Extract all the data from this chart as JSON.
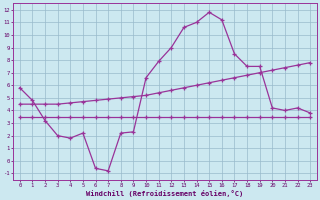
{
  "bg_color": "#cce8f0",
  "line_color": "#993399",
  "grid_color": "#99bbcc",
  "xlabel": "Windchill (Refroidissement éolien,°C)",
  "xlabel_color": "#660066",
  "tick_color": "#660066",
  "xlim": [
    -0.5,
    23.5
  ],
  "ylim": [
    -1.5,
    12.5
  ],
  "yticks": [
    -1,
    0,
    1,
    2,
    3,
    4,
    5,
    6,
    7,
    8,
    9,
    10,
    11,
    12
  ],
  "xticks": [
    0,
    1,
    2,
    3,
    4,
    5,
    6,
    7,
    8,
    9,
    10,
    11,
    12,
    13,
    14,
    15,
    16,
    17,
    18,
    19,
    20,
    21,
    22,
    23
  ],
  "line1_x": [
    0,
    1,
    2,
    3,
    4,
    5,
    6,
    7,
    8,
    9,
    10,
    11,
    12,
    13,
    14,
    15,
    16,
    17,
    18,
    19,
    20,
    21,
    22,
    23
  ],
  "line1_y": [
    5.8,
    4.8,
    3.2,
    2.0,
    1.8,
    2.2,
    -0.6,
    -0.8,
    2.2,
    2.3,
    6.6,
    7.9,
    9.0,
    10.6,
    11.0,
    11.8,
    11.2,
    8.5,
    7.5,
    7.5,
    4.2,
    4.0,
    4.2,
    3.8
  ],
  "line2_x": [
    0,
    1,
    2,
    3,
    4,
    5,
    6,
    7,
    8,
    9,
    10,
    11,
    12,
    13,
    14,
    15,
    16,
    17,
    18,
    19,
    20,
    21,
    22,
    23
  ],
  "line2_y": [
    4.5,
    4.5,
    4.5,
    4.5,
    4.6,
    4.7,
    4.8,
    4.9,
    5.0,
    5.1,
    5.2,
    5.4,
    5.6,
    5.8,
    6.0,
    6.2,
    6.4,
    6.6,
    6.8,
    7.0,
    7.2,
    7.4,
    7.6,
    7.8
  ],
  "line3_x": [
    0,
    1,
    2,
    3,
    4,
    5,
    6,
    7,
    8,
    9,
    10,
    11,
    12,
    13,
    14,
    15,
    16,
    17,
    18,
    19,
    20,
    21,
    22,
    23
  ],
  "line3_y": [
    3.5,
    3.5,
    3.5,
    3.5,
    3.5,
    3.5,
    3.5,
    3.5,
    3.5,
    3.5,
    3.5,
    3.5,
    3.5,
    3.5,
    3.5,
    3.5,
    3.5,
    3.5,
    3.5,
    3.5,
    3.5,
    3.5,
    3.5,
    3.5
  ]
}
